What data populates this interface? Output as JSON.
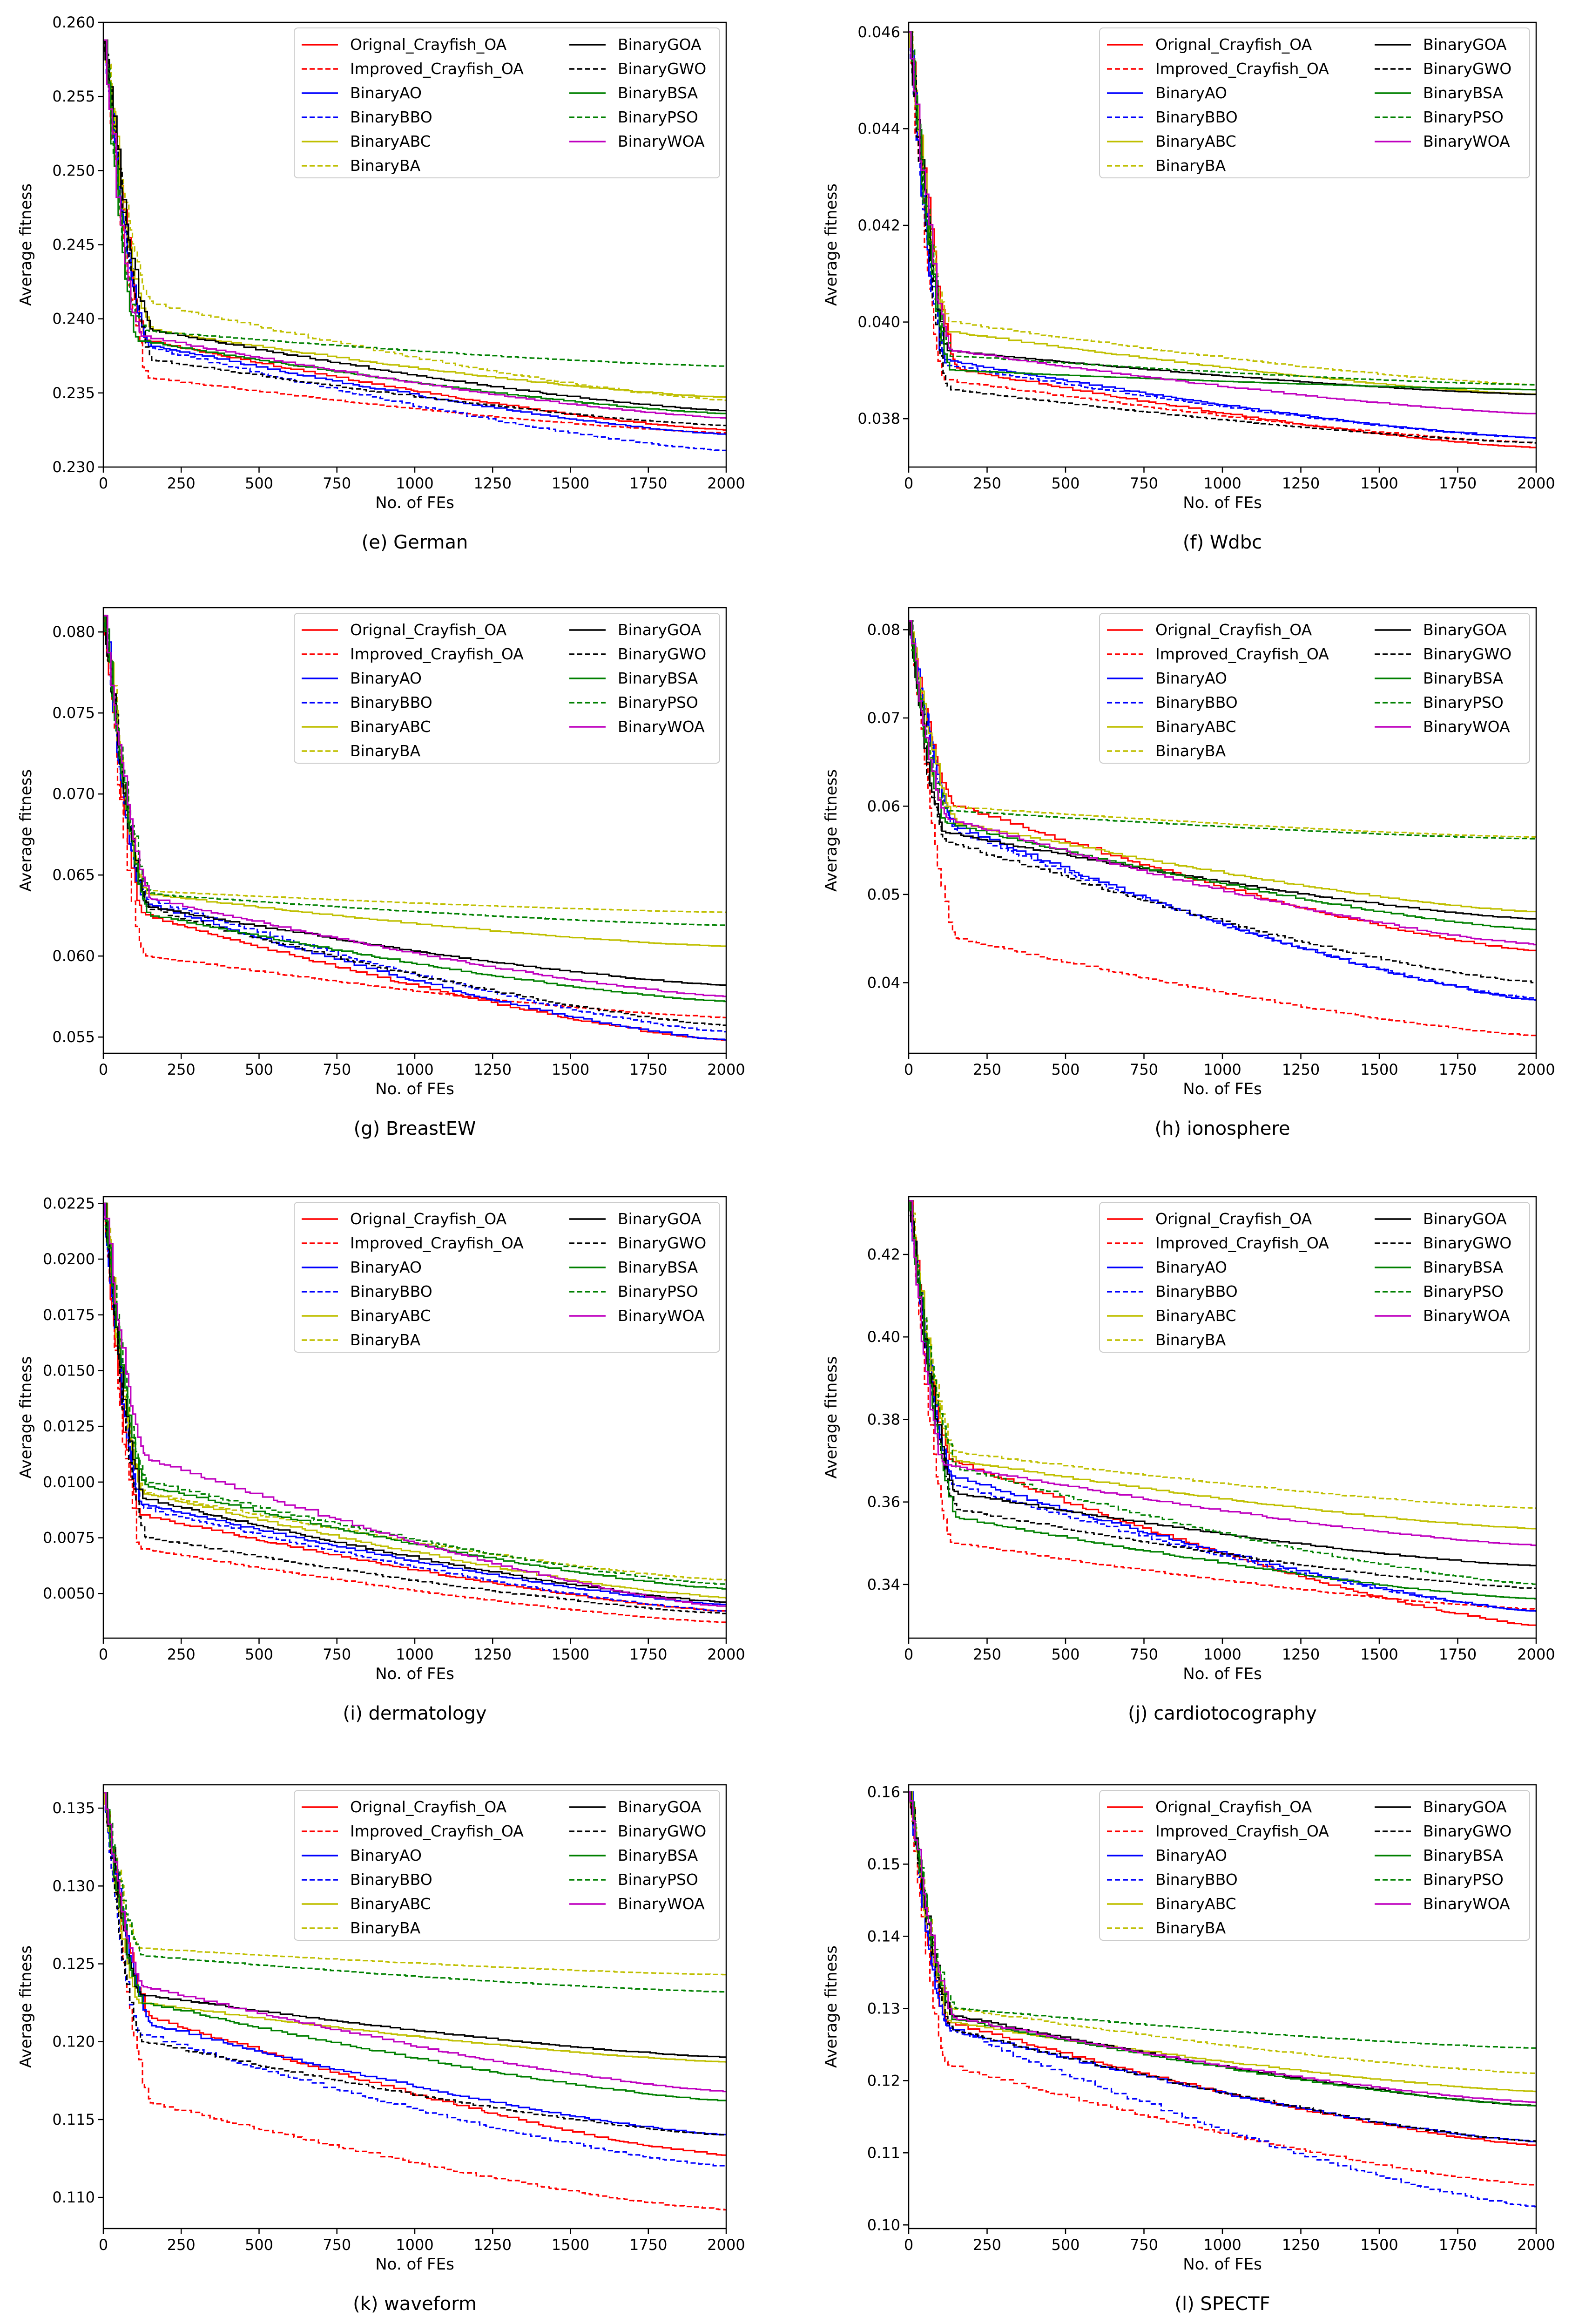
{
  "figure": {
    "x_tick_labels": [
      "0",
      "250",
      "500",
      "750",
      "1000",
      "1250",
      "1500",
      "1750",
      "2000"
    ]
  },
  "legend": [
    {
      "name": "Orignal_Crayfish_OA",
      "color": "#ff0000",
      "dash": false
    },
    {
      "name": "Improved_Crayfish_OA",
      "color": "#ff0000",
      "dash": true
    },
    {
      "name": "BinaryAO",
      "color": "#0000ff",
      "dash": false
    },
    {
      "name": "BinaryBBO",
      "color": "#0000ff",
      "dash": true
    },
    {
      "name": "BinaryABC",
      "color": "#bfbf00",
      "dash": false
    },
    {
      "name": "BinaryBA",
      "color": "#bfbf00",
      "dash": true
    },
    {
      "name": "BinaryGOA",
      "color": "#000000",
      "dash": false
    },
    {
      "name": "BinaryGWO",
      "color": "#000000",
      "dash": true
    },
    {
      "name": "BinaryBSA",
      "color": "#008000",
      "dash": false
    },
    {
      "name": "BinaryPSO",
      "color": "#008000",
      "dash": true
    },
    {
      "name": "BinaryWOA",
      "color": "#bf00bf",
      "dash": false
    }
  ],
  "chart_data": [
    {
      "type": "line",
      "caption": "(e) German",
      "xlabel": "No. of FEs",
      "ylabel": "Average fitness",
      "xlim": [
        0,
        2000
      ],
      "ylim": [
        0.23,
        0.26
      ],
      "yticks": [
        0.23,
        0.235,
        0.24,
        0.245,
        0.25,
        0.255,
        0.26
      ],
      "ytick_labels": [
        "0.230",
        "0.235",
        "0.240",
        "0.245",
        "0.250",
        "0.255",
        "0.260"
      ],
      "start": 0.2588,
      "finals": [
        0.2325,
        0.2323,
        0.2322,
        0.2311,
        0.2347,
        0.2345,
        0.2338,
        0.2328,
        0.2336,
        0.2368,
        0.2333
      ],
      "knees": [
        0.2385,
        0.236,
        0.2382,
        0.238,
        0.2392,
        0.241,
        0.2392,
        0.2372,
        0.2385,
        0.2392,
        0.2388
      ]
    },
    {
      "type": "line",
      "caption": "(f) Wdbc",
      "xlabel": "No. of FEs",
      "ylabel": "Average fitness",
      "xlim": [
        0,
        2000
      ],
      "ylim": [
        0.037,
        0.0462
      ],
      "yticks": [
        0.038,
        0.04,
        0.042,
        0.044,
        0.046
      ],
      "ytick_labels": [
        "0.038",
        "0.040",
        "0.042",
        "0.044",
        "0.046"
      ],
      "start": 0.046,
      "finals": [
        0.0374,
        0.0375,
        0.0376,
        0.0376,
        0.0385,
        0.0387,
        0.0385,
        0.0375,
        0.0386,
        0.0387,
        0.0381
      ],
      "knees": [
        0.039,
        0.0388,
        0.0392,
        0.0391,
        0.0398,
        0.04,
        0.0394,
        0.0386,
        0.039,
        0.0393,
        0.0394
      ]
    },
    {
      "type": "line",
      "caption": "(g) BreastEW",
      "xlabel": "No. of FEs",
      "ylabel": "Average fitness",
      "xlim": [
        0,
        2000
      ],
      "ylim": [
        0.054,
        0.0815
      ],
      "yticks": [
        0.055,
        0.06,
        0.065,
        0.07,
        0.075,
        0.08
      ],
      "ytick_labels": [
        "0.055",
        "0.060",
        "0.065",
        "0.070",
        "0.075",
        "0.080"
      ],
      "start": 0.081,
      "finals": [
        0.0548,
        0.0562,
        0.0548,
        0.0553,
        0.0606,
        0.0627,
        0.0582,
        0.0557,
        0.0572,
        0.0619,
        0.0575
      ],
      "knees": [
        0.0625,
        0.06,
        0.0632,
        0.0635,
        0.0638,
        0.064,
        0.063,
        0.0628,
        0.0625,
        0.0638,
        0.0635
      ]
    },
    {
      "type": "line",
      "caption": "(h) ionosphere",
      "xlabel": "No. of FEs",
      "ylabel": "Average fitness",
      "xlim": [
        0,
        2000
      ],
      "ylim": [
        0.032,
        0.0825
      ],
      "yticks": [
        0.04,
        0.05,
        0.06,
        0.07,
        0.08
      ],
      "ytick_labels": [
        "0.04",
        "0.05",
        "0.06",
        "0.07",
        "0.08"
      ],
      "start": 0.081,
      "finals": [
        0.0436,
        0.034,
        0.038,
        0.0382,
        0.048,
        0.0565,
        0.0472,
        0.04,
        0.046,
        0.0563,
        0.0443
      ],
      "knees": [
        0.06,
        0.045,
        0.0575,
        0.057,
        0.058,
        0.06,
        0.057,
        0.056,
        0.058,
        0.0595,
        0.0585
      ]
    },
    {
      "type": "line",
      "caption": "(i) dermatology",
      "xlabel": "No. of FEs",
      "ylabel": "Average fitness",
      "xlim": [
        0,
        2000
      ],
      "ylim": [
        0.003,
        0.0228
      ],
      "yticks": [
        0.005,
        0.0075,
        0.01,
        0.0125,
        0.015,
        0.0175,
        0.02,
        0.0225
      ],
      "ytick_labels": [
        "0.0050",
        "0.0075",
        "0.0100",
        "0.0125",
        "0.0150",
        "0.0175",
        "0.0200",
        "0.0225"
      ],
      "start": 0.0225,
      "finals": [
        0.0042,
        0.0037,
        0.0045,
        0.0042,
        0.0048,
        0.0056,
        0.0046,
        0.0041,
        0.0052,
        0.0054,
        0.0044
      ],
      "knees": [
        0.0085,
        0.007,
        0.009,
        0.0088,
        0.0095,
        0.0095,
        0.0092,
        0.0075,
        0.0098,
        0.01,
        0.011
      ]
    },
    {
      "type": "line",
      "caption": "(j) cardiotocography",
      "xlabel": "No. of FEs",
      "ylabel": "Average fitness",
      "xlim": [
        0,
        2000
      ],
      "ylim": [
        0.327,
        0.434
      ],
      "yticks": [
        0.34,
        0.36,
        0.38,
        0.4,
        0.42
      ],
      "ytick_labels": [
        "0.34",
        "0.36",
        "0.38",
        "0.40",
        "0.42"
      ],
      "start": 0.433,
      "finals": [
        0.33,
        0.334,
        0.3335,
        0.3335,
        0.3535,
        0.3585,
        0.3445,
        0.339,
        0.3365,
        0.34,
        0.3495
      ],
      "knees": [
        0.37,
        0.35,
        0.366,
        0.364,
        0.37,
        0.372,
        0.362,
        0.358,
        0.356,
        0.368,
        0.369
      ]
    },
    {
      "type": "line",
      "caption": "(k) waveform",
      "xlabel": "No. of FEs",
      "ylabel": "Average fitness",
      "xlim": [
        0,
        2000
      ],
      "ylim": [
        0.108,
        0.1365
      ],
      "yticks": [
        0.11,
        0.115,
        0.12,
        0.125,
        0.13,
        0.135
      ],
      "ytick_labels": [
        "0.110",
        "0.115",
        "0.120",
        "0.125",
        "0.130",
        "0.135"
      ],
      "start": 0.136,
      "finals": [
        0.1127,
        0.1092,
        0.114,
        0.112,
        0.1187,
        0.1243,
        0.119,
        0.114,
        0.1162,
        0.1232,
        0.1168
      ],
      "knees": [
        0.1215,
        0.116,
        0.121,
        0.1205,
        0.1225,
        0.126,
        0.123,
        0.12,
        0.1225,
        0.1255,
        0.1235
      ]
    },
    {
      "type": "line",
      "caption": "(l) SPECTF",
      "xlabel": "No. of FEs",
      "ylabel": "Average fitness",
      "xlim": [
        0,
        2000
      ],
      "ylim": [
        0.0995,
        0.161
      ],
      "yticks": [
        0.1,
        0.11,
        0.12,
        0.13,
        0.14,
        0.15,
        0.16
      ],
      "ytick_labels": [
        "0.10",
        "0.11",
        "0.12",
        "0.13",
        "0.14",
        "0.15",
        "0.16"
      ],
      "start": 0.16,
      "finals": [
        0.111,
        0.1055,
        0.1115,
        0.1025,
        0.1185,
        0.121,
        0.1165,
        0.1115,
        0.1165,
        0.1245,
        0.117
      ],
      "knees": [
        0.128,
        0.122,
        0.127,
        0.127,
        0.128,
        0.13,
        0.129,
        0.127,
        0.1285,
        0.13,
        0.1285
      ]
    }
  ]
}
